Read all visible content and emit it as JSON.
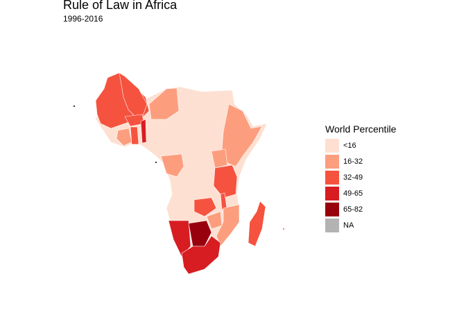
{
  "title": "Rule of Law in Africa",
  "subtitle": "1996-2016",
  "legend": {
    "title": "World Percentile",
    "items": [
      {
        "label": "<16",
        "color": "#fee0d2"
      },
      {
        "label": "16-32",
        "color": "#fc9e7e"
      },
      {
        "label": "32-49",
        "color": "#f5533f"
      },
      {
        "label": "49-65",
        "color": "#d71d22"
      },
      {
        "label": "65-82",
        "color": "#99000d"
      },
      {
        "label": "NA",
        "color": "#b3b3b3"
      }
    ]
  }
}
